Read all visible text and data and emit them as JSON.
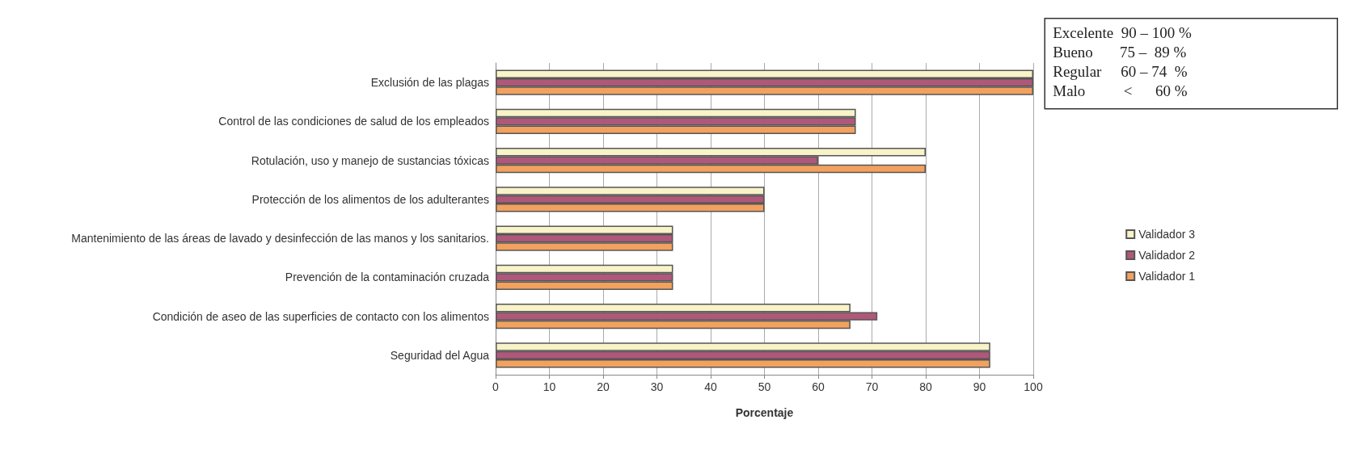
{
  "chart_data": {
    "type": "bar",
    "orientation": "horizontal",
    "xlabel": "Porcentaje",
    "categories": [
      "Exclusión de las plagas",
      "Control de las condiciones de salud de los empleados",
      "Rotulación, uso y manejo de sustancias tóxicas",
      "Protección de los alimentos de los adulterantes",
      "Mantenimiento de las áreas de lavado y desinfección de las manos y los sanitarios.",
      "Prevención de la contaminación cruzada",
      "Condición de aseo de las superficies de contacto con los alimentos",
      "Seguridad del Agua"
    ],
    "series": [
      {
        "name": "Validador 3",
        "color": "#f8f3c8",
        "values": [
          100,
          67,
          80,
          50,
          33,
          33,
          66,
          92
        ]
      },
      {
        "name": "Validador 2",
        "color": "#b0587a",
        "values": [
          100,
          67,
          60,
          50,
          33,
          33,
          71,
          92
        ]
      },
      {
        "name": "Validador 1",
        "color": "#f2a15e",
        "values": [
          100,
          67,
          80,
          50,
          33,
          33,
          66,
          92
        ]
      }
    ],
    "xlim": [
      0,
      100
    ],
    "xticks": [
      0,
      10,
      20,
      30,
      40,
      50,
      60,
      70,
      80,
      90,
      100
    ],
    "grid": "x",
    "legend": "right",
    "annotations": [
      "Excelente  90 – 100 %",
      "Bueno       75 –  89 %",
      "Regular     60 – 74  %",
      "Malo          <      60 %"
    ]
  }
}
